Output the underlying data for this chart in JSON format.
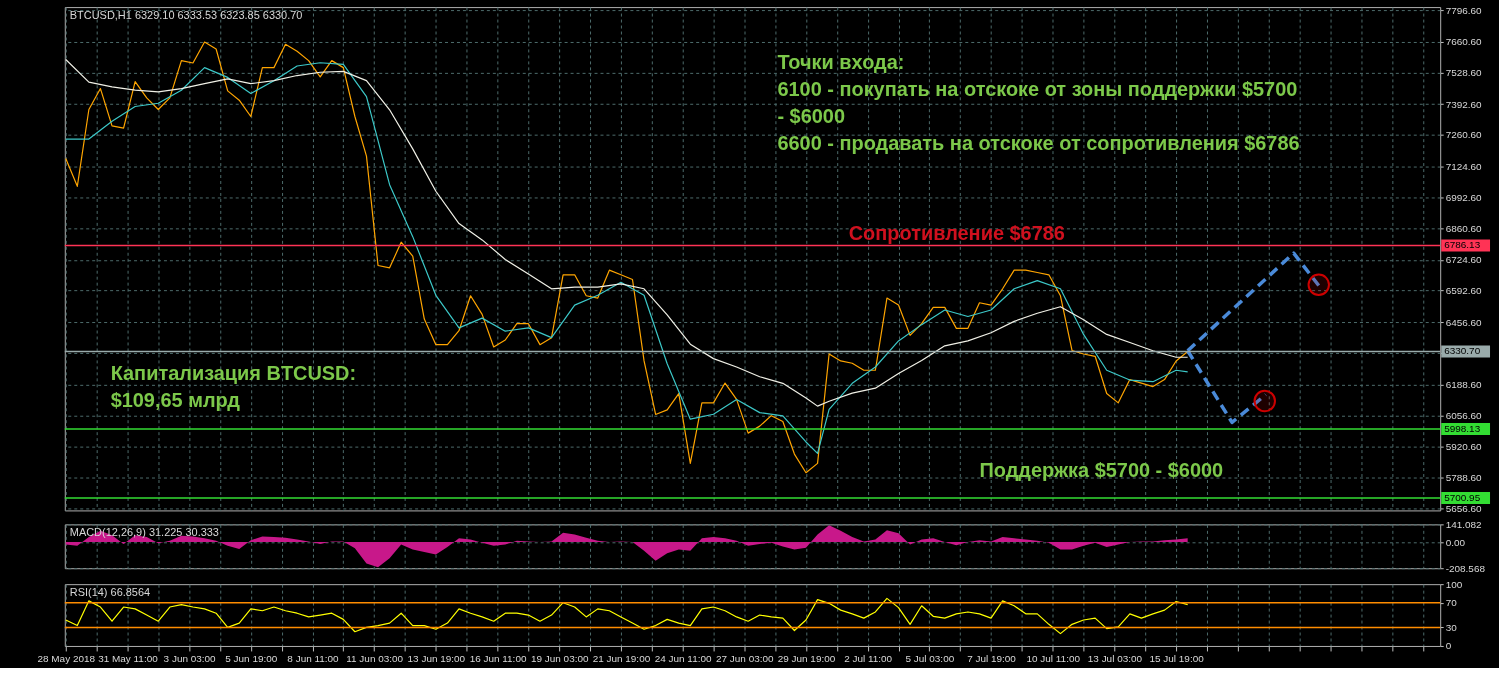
{
  "chart_data": [
    {
      "type": "line",
      "title": "BTCUSD,H1  6329.10 6333.53 6323.85 6330.70",
      "x": [
        "2018-05-28T19:00",
        "2018-05-29T07:00",
        "2018-05-29T19:00",
        "2018-05-30T07:00",
        "2018-05-30T19:00",
        "2018-05-31T07:00",
        "2018-05-31T19:00",
        "2018-06-01T07:00",
        "2018-06-01T19:00",
        "2018-06-02T07:00",
        "2018-06-02T19:00",
        "2018-06-03T07:00",
        "2018-06-03T19:00",
        "2018-06-04T07:00",
        "2018-06-04T19:00",
        "2018-06-05T07:00",
        "2018-06-05T19:00",
        "2018-06-06T07:00",
        "2018-06-06T19:00",
        "2018-06-07T07:00",
        "2018-06-07T19:00",
        "2018-06-08T07:00",
        "2018-06-08T19:00",
        "2018-06-09T07:00",
        "2018-06-09T19:00",
        "2018-06-10T07:00",
        "2018-06-10T19:00",
        "2018-06-11T07:00",
        "2018-06-11T19:00",
        "2018-06-12T07:00",
        "2018-06-12T19:00",
        "2018-06-13T07:00",
        "2018-06-13T19:00",
        "2018-06-14T07:00",
        "2018-06-14T19:00",
        "2018-06-15T07:00",
        "2018-06-15T19:00",
        "2018-06-16T07:00",
        "2018-06-16T19:00",
        "2018-06-17T07:00",
        "2018-06-17T19:00",
        "2018-06-18T07:00",
        "2018-06-18T19:00",
        "2018-06-19T07:00",
        "2018-06-19T19:00",
        "2018-06-20T07:00",
        "2018-06-20T19:00",
        "2018-06-21T07:00",
        "2018-06-21T19:00",
        "2018-06-22T07:00",
        "2018-06-22T19:00",
        "2018-06-23T07:00",
        "2018-06-23T19:00",
        "2018-06-24T07:00",
        "2018-06-24T19:00",
        "2018-06-25T07:00",
        "2018-06-25T19:00",
        "2018-06-26T07:00",
        "2018-06-26T19:00",
        "2018-06-27T07:00",
        "2018-06-27T19:00",
        "2018-06-28T07:00",
        "2018-06-28T19:00",
        "2018-06-29T07:00",
        "2018-06-29T19:00",
        "2018-06-30T07:00",
        "2018-06-30T19:00",
        "2018-07-01T07:00",
        "2018-07-01T19:00",
        "2018-07-02T07:00",
        "2018-07-02T19:00",
        "2018-07-03T07:00",
        "2018-07-03T19:00",
        "2018-07-04T07:00",
        "2018-07-04T19:00",
        "2018-07-05T07:00",
        "2018-07-05T19:00",
        "2018-07-06T07:00",
        "2018-07-06T19:00",
        "2018-07-07T07:00",
        "2018-07-07T19:00",
        "2018-07-08T07:00",
        "2018-07-08T19:00",
        "2018-07-09T07:00",
        "2018-07-09T19:00",
        "2018-07-10T07:00",
        "2018-07-10T19:00",
        "2018-07-11T07:00",
        "2018-07-11T19:00",
        "2018-07-12T07:00",
        "2018-07-12T19:00",
        "2018-07-13T07:00",
        "2018-07-13T19:00",
        "2018-07-14T07:00",
        "2018-07-14T19:00",
        "2018-07-15T07:00",
        "2018-07-15T19:00",
        "2018-07-16T07:00"
      ],
      "series": [
        {
          "color": "#ffa500",
          "values": [
            7160,
            7040,
            7370,
            7460,
            7300,
            7290,
            7490,
            7420,
            7370,
            7420,
            7580,
            7570,
            7660,
            7630,
            7450,
            7410,
            7340,
            7550,
            7550,
            7650,
            7620,
            7580,
            7510,
            7580,
            7550,
            7340,
            7170,
            6700,
            6690,
            6800,
            6740,
            6470,
            6360,
            6360,
            6420,
            6570,
            6490,
            6350,
            6380,
            6450,
            6450,
            6360,
            6390,
            6660,
            6660,
            6570,
            6560,
            6680,
            6660,
            6640,
            6290,
            6060,
            6080,
            6150,
            5850,
            6110,
            6110,
            6195,
            6125,
            5980,
            6010,
            6055,
            6030,
            5890,
            5810,
            5850,
            6320,
            6290,
            6280,
            6250,
            6250,
            6560,
            6530,
            6400,
            6450,
            6520,
            6520,
            6430,
            6430,
            6540,
            6530,
            6600,
            6680,
            6680,
            6670,
            6660,
            6570,
            6335,
            6320,
            6310,
            6150,
            6110,
            6210,
            6195,
            6180,
            6210,
            6290,
            6330.7
          ]
        },
        {
          "color": "#3cc8c8",
          "x": [
            "2018-05-28T19:00",
            "2018-05-29T19:00",
            "2018-05-30T19:00",
            "2018-05-31T19:00",
            "2018-06-01T19:00",
            "2018-06-02T19:00",
            "2018-06-03T19:00",
            "2018-06-04T19:00",
            "2018-06-05T19:00",
            "2018-06-06T19:00",
            "2018-06-07T19:00",
            "2018-06-08T19:00",
            "2018-06-09T19:00",
            "2018-06-10T19:00",
            "2018-06-11T19:00",
            "2018-06-12T19:00",
            "2018-06-13T19:00",
            "2018-06-14T19:00",
            "2018-06-15T19:00",
            "2018-06-16T19:00",
            "2018-06-17T19:00",
            "2018-06-18T19:00",
            "2018-06-19T19:00",
            "2018-06-20T19:00",
            "2018-06-21T19:00",
            "2018-06-22T19:00",
            "2018-06-23T19:00",
            "2018-06-24T19:00",
            "2018-06-25T19:00",
            "2018-06-26T19:00",
            "2018-06-27T19:00",
            "2018-06-28T19:00",
            "2018-06-29T19:00",
            "2018-06-30T07:00",
            "2018-06-30T19:00",
            "2018-07-01T19:00",
            "2018-07-02T19:00",
            "2018-07-03T19:00",
            "2018-07-04T19:00",
            "2018-07-05T19:00",
            "2018-07-06T19:00",
            "2018-07-07T19:00",
            "2018-07-08T19:00",
            "2018-07-09T19:00",
            "2018-07-10T19:00",
            "2018-07-11T19:00",
            "2018-07-12T19:00",
            "2018-07-13T19:00",
            "2018-07-14T19:00",
            "2018-07-15T19:00",
            "2018-07-16T07:00"
          ],
          "values": [
            7243,
            7243,
            7320,
            7383,
            7397,
            7453,
            7550,
            7508,
            7439,
            7494,
            7557,
            7571,
            7564,
            7425,
            7047,
            6824,
            6572,
            6432,
            6474,
            6418,
            6432,
            6390,
            6530,
            6572,
            6628,
            6572,
            6278,
            6040,
            6061,
            6124,
            6068,
            6054,
            5942,
            5893,
            6082,
            6194,
            6264,
            6376,
            6446,
            6509,
            6481,
            6509,
            6600,
            6635,
            6600,
            6404,
            6250,
            6208,
            6201,
            6250,
            6243
          ]
        },
        {
          "color": "#f0f0e6",
          "x": [
            "2018-05-28T19:00",
            "2018-05-29T19:00",
            "2018-05-30T19:00",
            "2018-05-31T19:00",
            "2018-06-01T19:00",
            "2018-06-02T19:00",
            "2018-06-03T19:00",
            "2018-06-04T19:00",
            "2018-06-05T19:00",
            "2018-06-06T19:00",
            "2018-06-07T19:00",
            "2018-06-08T19:00",
            "2018-06-09T19:00",
            "2018-06-10T19:00",
            "2018-06-11T19:00",
            "2018-06-12T19:00",
            "2018-06-13T19:00",
            "2018-06-14T19:00",
            "2018-06-15T19:00",
            "2018-06-16T19:00",
            "2018-06-17T19:00",
            "2018-06-18T19:00",
            "2018-06-19T19:00",
            "2018-06-20T19:00",
            "2018-06-21T19:00",
            "2018-06-22T19:00",
            "2018-06-23T19:00",
            "2018-06-24T19:00",
            "2018-06-25T19:00",
            "2018-06-26T19:00",
            "2018-06-27T19:00",
            "2018-06-28T19:00",
            "2018-06-29T19:00",
            "2018-06-30T07:00",
            "2018-06-30T19:00",
            "2018-07-01T19:00",
            "2018-07-02T19:00",
            "2018-07-03T19:00",
            "2018-07-04T19:00",
            "2018-07-05T19:00",
            "2018-07-06T19:00",
            "2018-07-07T19:00",
            "2018-07-08T19:00",
            "2018-07-09T19:00",
            "2018-07-10T19:00",
            "2018-07-11T19:00",
            "2018-07-12T19:00",
            "2018-07-13T19:00",
            "2018-07-14T19:00",
            "2018-07-15T19:00",
            "2018-07-16T07:00"
          ],
          "values": [
            7585,
            7488,
            7467,
            7453,
            7446,
            7460,
            7481,
            7502,
            7481,
            7494,
            7516,
            7530,
            7534,
            7494,
            7369,
            7201,
            7019,
            6880,
            6810,
            6726,
            6663,
            6600,
            6607,
            6607,
            6621,
            6600,
            6488,
            6362,
            6300,
            6264,
            6222,
            6194,
            6131,
            6096,
            6117,
            6152,
            6173,
            6236,
            6292,
            6355,
            6376,
            6411,
            6460,
            6495,
            6523,
            6467,
            6404,
            6369,
            6334,
            6306,
            6306
          ]
        },
        {
          "type": "line",
          "line_style": "dashed",
          "color": "#4a8ad8",
          "x": [
            "2018-07-16T07:00",
            "2018-07-20T21:00",
            "2018-07-21T23:00"
          ],
          "values": [
            6334,
            6753,
            6614
          ]
        },
        {
          "type": "line",
          "line_style": "dashed",
          "color": "#4a8ad8",
          "x": [
            "2018-07-16T07:00",
            "2018-07-18T05:00",
            "2018-07-19T16:00"
          ],
          "values": [
            6334,
            6026,
            6145
          ]
        },
        {
          "type": "scatter",
          "marker": "circle",
          "color": "#cc0000",
          "x": [
            "2018-07-21T23:00",
            "2018-07-19T15:00"
          ],
          "values": [
            6617,
            6118
          ]
        }
      ],
      "xlim": [
        "2018-05-28T18:00",
        "2018-07-27T05:00"
      ],
      "ylim": [
        5648,
        7810
      ],
      "yticks": [
        {
          "value": 7796.6,
          "label": "7796.60"
        },
        {
          "value": 7660.6,
          "label": "7660.60"
        },
        {
          "value": 7528.6,
          "label": "7528.60"
        },
        {
          "value": 7392.6,
          "label": "7392.60"
        },
        {
          "value": 7260.6,
          "label": "7260.60"
        },
        {
          "value": 7124.6,
          "label": "7124.60"
        },
        {
          "value": 6992.6,
          "label": "6992.60"
        },
        {
          "value": 6860.6,
          "label": "6860.60"
        },
        {
          "value": 6724.6,
          "label": "6724.60"
        },
        {
          "value": 6592.6,
          "label": "6592.60"
        },
        {
          "value": 6456.6,
          "label": "6456.60"
        },
        {
          "value": 6324.6,
          "label": null
        },
        {
          "value": 6188.6,
          "label": "6188.60"
        },
        {
          "value": 6056.6,
          "label": "6056.60"
        },
        {
          "value": 5920.6,
          "label": "5920.60"
        },
        {
          "value": 5788.6,
          "label": "5788.60"
        },
        {
          "value": 5656.6,
          "label": "5656.60"
        }
      ],
      "grid": true,
      "tick_labels": "y",
      "ref_lines": [
        {
          "axis": "y",
          "value": 6786.13,
          "label": "6786.13",
          "color": "#ff3355"
        },
        {
          "axis": "y",
          "value": 6330.7,
          "label": "6330.70",
          "color": "#9aabab"
        },
        {
          "axis": "y",
          "value": 5998.13,
          "label": "5998.13",
          "color": "#33dd33"
        },
        {
          "axis": "y",
          "value": 5700.95,
          "label": "5700.95",
          "color": "#33dd33"
        }
      ],
      "xticks": [
        {
          "value": "2018-05-28T19:00",
          "label": null
        },
        {
          "value": "2018-05-30T03:00",
          "label": null
        },
        {
          "value": "2018-05-31T11:00",
          "label": null
        },
        {
          "value": "2018-06-01T19:00",
          "label": null
        },
        {
          "value": "2018-06-03T03:00",
          "label": null
        },
        {
          "value": "2018-06-04T11:00",
          "label": null
        },
        {
          "value": "2018-06-05T19:00",
          "label": null
        },
        {
          "value": "2018-06-07T03:00",
          "label": null
        },
        {
          "value": "2018-06-08T11:00",
          "label": null
        },
        {
          "value": "2018-06-09T19:00",
          "label": null
        },
        {
          "value": "2018-06-11T03:00",
          "label": null
        },
        {
          "value": "2018-06-12T11:00",
          "label": null
        },
        {
          "value": "2018-06-13T19:00",
          "label": null
        },
        {
          "value": "2018-06-15T03:00",
          "label": null
        },
        {
          "value": "2018-06-16T11:00",
          "label": null
        },
        {
          "value": "2018-06-17T19:00",
          "label": null
        },
        {
          "value": "2018-06-19T03:00",
          "label": null
        },
        {
          "value": "2018-06-20T11:00",
          "label": null
        },
        {
          "value": "2018-06-21T19:00",
          "label": null
        },
        {
          "value": "2018-06-23T03:00",
          "label": null
        },
        {
          "value": "2018-06-24T11:00",
          "label": null
        },
        {
          "value": "2018-06-25T19:00",
          "label": null
        },
        {
          "value": "2018-06-27T03:00",
          "label": null
        },
        {
          "value": "2018-06-28T11:00",
          "label": null
        },
        {
          "value": "2018-06-29T19:00",
          "label": null
        },
        {
          "value": "2018-07-01T03:00",
          "label": null
        },
        {
          "value": "2018-07-02T11:00",
          "label": null
        },
        {
          "value": "2018-07-03T19:00",
          "label": null
        },
        {
          "value": "2018-07-05T03:00",
          "label": null
        },
        {
          "value": "2018-07-06T11:00",
          "label": null
        },
        {
          "value": "2018-07-07T19:00",
          "label": null
        },
        {
          "value": "2018-07-09T03:00",
          "label": null
        },
        {
          "value": "2018-07-10T11:00",
          "label": null
        },
        {
          "value": "2018-07-11T19:00",
          "label": null
        },
        {
          "value": "2018-07-13T03:00",
          "label": null
        },
        {
          "value": "2018-07-14T11:00",
          "label": null
        },
        {
          "value": "2018-07-15T19:00",
          "label": null
        },
        {
          "value": "2018-07-17T03:00",
          "label": null
        },
        {
          "value": "2018-07-18T11:00",
          "label": null
        },
        {
          "value": "2018-07-19T19:00",
          "label": null
        },
        {
          "value": "2018-07-21T03:00",
          "label": null
        },
        {
          "value": "2018-07-22T11:00",
          "label": null
        },
        {
          "value": "2018-07-23T19:00",
          "label": null
        },
        {
          "value": "2018-07-25T03:00",
          "label": null
        },
        {
          "value": "2018-07-26T11:00",
          "label": null
        }
      ],
      "annotations": [
        "Точки входа:\n6100 - покупать на отскоке от зоны поддержки $5700\n- $6000\n6600 - продавать на отскоке от сопротивления $6786",
        "Капитализация BTCUSD:\n$109,65 млрд",
        "Сопротивление $6786",
        "Поддержка $5700 - $6000"
      ]
    },
    {
      "type": "area",
      "title": "MACD(12,26,9) 31.225 30.333",
      "x": [
        "2018-05-28T19:00",
        "2018-05-29T07:00",
        "2018-05-29T19:00",
        "2018-05-30T07:00",
        "2018-05-30T19:00",
        "2018-05-31T07:00",
        "2018-05-31T19:00",
        "2018-06-01T07:00",
        "2018-06-01T19:00",
        "2018-06-02T07:00",
        "2018-06-02T19:00",
        "2018-06-03T07:00",
        "2018-06-03T19:00",
        "2018-06-04T07:00",
        "2018-06-04T19:00",
        "2018-06-05T07:00",
        "2018-06-05T19:00",
        "2018-06-06T07:00",
        "2018-06-06T19:00",
        "2018-06-07T07:00",
        "2018-06-07T19:00",
        "2018-06-08T07:00",
        "2018-06-08T19:00",
        "2018-06-09T07:00",
        "2018-06-09T19:00",
        "2018-06-10T07:00",
        "2018-06-10T19:00",
        "2018-06-11T07:00",
        "2018-06-11T19:00",
        "2018-06-12T07:00",
        "2018-06-12T19:00",
        "2018-06-13T07:00",
        "2018-06-13T19:00",
        "2018-06-14T07:00",
        "2018-06-14T19:00",
        "2018-06-15T07:00",
        "2018-06-15T19:00",
        "2018-06-16T07:00",
        "2018-06-16T19:00",
        "2018-06-17T07:00",
        "2018-06-17T19:00",
        "2018-06-18T07:00",
        "2018-06-18T19:00",
        "2018-06-19T07:00",
        "2018-06-19T19:00",
        "2018-06-20T07:00",
        "2018-06-20T19:00",
        "2018-06-21T07:00",
        "2018-06-21T19:00",
        "2018-06-22T07:00",
        "2018-06-22T19:00",
        "2018-06-23T07:00",
        "2018-06-23T19:00",
        "2018-06-24T07:00",
        "2018-06-24T19:00",
        "2018-06-25T07:00",
        "2018-06-25T19:00",
        "2018-06-26T07:00",
        "2018-06-26T19:00",
        "2018-06-27T07:00",
        "2018-06-27T19:00",
        "2018-06-28T07:00",
        "2018-06-28T19:00",
        "2018-06-29T07:00",
        "2018-06-29T19:00",
        "2018-06-30T07:00",
        "2018-06-30T19:00",
        "2018-07-01T07:00",
        "2018-07-01T19:00",
        "2018-07-02T07:00",
        "2018-07-02T19:00",
        "2018-07-03T07:00",
        "2018-07-03T19:00",
        "2018-07-04T07:00",
        "2018-07-04T19:00",
        "2018-07-05T07:00",
        "2018-07-05T19:00",
        "2018-07-06T07:00",
        "2018-07-06T19:00",
        "2018-07-07T07:00",
        "2018-07-07T19:00",
        "2018-07-08T07:00",
        "2018-07-08T19:00",
        "2018-07-09T07:00",
        "2018-07-09T19:00",
        "2018-07-10T07:00",
        "2018-07-10T19:00",
        "2018-07-11T07:00",
        "2018-07-11T19:00",
        "2018-07-12T07:00",
        "2018-07-12T19:00",
        "2018-07-13T07:00",
        "2018-07-13T19:00",
        "2018-07-14T07:00",
        "2018-07-14T19:00",
        "2018-07-15T07:00",
        "2018-07-15T19:00",
        "2018-07-16T07:00"
      ],
      "series": [
        {
          "color": "#c8188a",
          "values": [
            -20,
            -30,
            40,
            90,
            55,
            -15,
            55,
            40,
            -10,
            10,
            50,
            45,
            30,
            10,
            -30,
            -55,
            15,
            45,
            40,
            35,
            20,
            5,
            -15,
            5,
            5,
            -50,
            -170,
            -200,
            -130,
            -20,
            -60,
            -80,
            -100,
            -40,
            30,
            20,
            -5,
            -30,
            -20,
            10,
            5,
            0,
            5,
            75,
            60,
            35,
            10,
            0,
            5,
            0,
            -70,
            -150,
            -90,
            -60,
            -70,
            30,
            40,
            30,
            10,
            -30,
            -15,
            -5,
            -35,
            -60,
            -45,
            60,
            135,
            90,
            40,
            5,
            20,
            95,
            70,
            -20,
            20,
            30,
            0,
            -25,
            0,
            15,
            5,
            40,
            30,
            20,
            10,
            -5,
            -60,
            -60,
            -30,
            -5,
            -40,
            -20,
            0,
            5,
            5,
            15,
            20,
            31.225
          ]
        }
      ],
      "xlim": [
        "2018-05-28T18:00",
        "2018-07-27T05:00"
      ],
      "xticks": [
        {
          "value": "2018-05-28T19:00",
          "label": null
        },
        {
          "value": "2018-05-30T03:00",
          "label": null
        },
        {
          "value": "2018-05-31T11:00",
          "label": null
        },
        {
          "value": "2018-06-01T19:00",
          "label": null
        },
        {
          "value": "2018-06-03T03:00",
          "label": null
        },
        {
          "value": "2018-06-04T11:00",
          "label": null
        },
        {
          "value": "2018-06-05T19:00",
          "label": null
        },
        {
          "value": "2018-06-07T03:00",
          "label": null
        },
        {
          "value": "2018-06-08T11:00",
          "label": null
        },
        {
          "value": "2018-06-09T19:00",
          "label": null
        },
        {
          "value": "2018-06-11T03:00",
          "label": null
        },
        {
          "value": "2018-06-12T11:00",
          "label": null
        },
        {
          "value": "2018-06-13T19:00",
          "label": null
        },
        {
          "value": "2018-06-15T03:00",
          "label": null
        },
        {
          "value": "2018-06-16T11:00",
          "label": null
        },
        {
          "value": "2018-06-17T19:00",
          "label": null
        },
        {
          "value": "2018-06-19T03:00",
          "label": null
        },
        {
          "value": "2018-06-20T11:00",
          "label": null
        },
        {
          "value": "2018-06-21T19:00",
          "label": null
        },
        {
          "value": "2018-06-23T03:00",
          "label": null
        },
        {
          "value": "2018-06-24T11:00",
          "label": null
        },
        {
          "value": "2018-06-25T19:00",
          "label": null
        },
        {
          "value": "2018-06-27T03:00",
          "label": null
        },
        {
          "value": "2018-06-28T11:00",
          "label": null
        },
        {
          "value": "2018-06-29T19:00",
          "label": null
        },
        {
          "value": "2018-07-01T03:00",
          "label": null
        },
        {
          "value": "2018-07-02T11:00",
          "label": null
        },
        {
          "value": "2018-07-03T19:00",
          "label": null
        },
        {
          "value": "2018-07-05T03:00",
          "label": null
        },
        {
          "value": "2018-07-06T11:00",
          "label": null
        },
        {
          "value": "2018-07-07T19:00",
          "label": null
        },
        {
          "value": "2018-07-09T03:00",
          "label": null
        },
        {
          "value": "2018-07-10T11:00",
          "label": null
        },
        {
          "value": "2018-07-11T19:00",
          "label": null
        },
        {
          "value": "2018-07-13T03:00",
          "label": null
        },
        {
          "value": "2018-07-14T11:00",
          "label": null
        },
        {
          "value": "2018-07-15T19:00",
          "label": null
        },
        {
          "value": "2018-07-17T03:00",
          "label": null
        },
        {
          "value": "2018-07-18T11:00",
          "label": null
        },
        {
          "value": "2018-07-19T19:00",
          "label": null
        },
        {
          "value": "2018-07-21T03:00",
          "label": null
        },
        {
          "value": "2018-07-22T11:00",
          "label": null
        },
        {
          "value": "2018-07-23T19:00",
          "label": null
        },
        {
          "value": "2018-07-25T03:00",
          "label": null
        },
        {
          "value": "2018-07-26T11:00",
          "label": null
        }
      ],
      "ylim": [
        -208.568,
        141.082
      ],
      "yticks": [
        {
          "value": 141.082,
          "label": "141.082"
        },
        {
          "value": 0,
          "label": "0.00"
        },
        {
          "value": -208.568,
          "label": "-208.568"
        }
      ],
      "grid": true,
      "tick_labels": "y"
    },
    {
      "type": "line",
      "title": "RSI(14) 66.8564",
      "x": [
        "2018-05-28T19:00",
        "2018-05-29T07:00",
        "2018-05-29T19:00",
        "2018-05-30T07:00",
        "2018-05-30T19:00",
        "2018-05-31T07:00",
        "2018-05-31T19:00",
        "2018-06-01T07:00",
        "2018-06-01T19:00",
        "2018-06-02T07:00",
        "2018-06-02T19:00",
        "2018-06-03T07:00",
        "2018-06-03T19:00",
        "2018-06-04T07:00",
        "2018-06-04T19:00",
        "2018-06-05T07:00",
        "2018-06-05T19:00",
        "2018-06-06T07:00",
        "2018-06-06T19:00",
        "2018-06-07T07:00",
        "2018-06-07T19:00",
        "2018-06-08T07:00",
        "2018-06-08T19:00",
        "2018-06-09T07:00",
        "2018-06-09T19:00",
        "2018-06-10T07:00",
        "2018-06-10T19:00",
        "2018-06-11T07:00",
        "2018-06-11T19:00",
        "2018-06-12T07:00",
        "2018-06-12T19:00",
        "2018-06-13T07:00",
        "2018-06-13T19:00",
        "2018-06-14T07:00",
        "2018-06-14T19:00",
        "2018-06-15T07:00",
        "2018-06-15T19:00",
        "2018-06-16T07:00",
        "2018-06-16T19:00",
        "2018-06-17T07:00",
        "2018-06-17T19:00",
        "2018-06-18T07:00",
        "2018-06-18T19:00",
        "2018-06-19T07:00",
        "2018-06-19T19:00",
        "2018-06-20T07:00",
        "2018-06-20T19:00",
        "2018-06-21T07:00",
        "2018-06-21T19:00",
        "2018-06-22T07:00",
        "2018-06-22T19:00",
        "2018-06-23T07:00",
        "2018-06-23T19:00",
        "2018-06-24T07:00",
        "2018-06-24T19:00",
        "2018-06-25T07:00",
        "2018-06-25T19:00",
        "2018-06-26T07:00",
        "2018-06-26T19:00",
        "2018-06-27T07:00",
        "2018-06-27T19:00",
        "2018-06-28T07:00",
        "2018-06-28T19:00",
        "2018-06-29T07:00",
        "2018-06-29T19:00",
        "2018-06-30T07:00",
        "2018-06-30T19:00",
        "2018-07-01T07:00",
        "2018-07-01T19:00",
        "2018-07-02T07:00",
        "2018-07-02T19:00",
        "2018-07-03T07:00",
        "2018-07-03T19:00",
        "2018-07-04T07:00",
        "2018-07-04T19:00",
        "2018-07-05T07:00",
        "2018-07-05T19:00",
        "2018-07-06T07:00",
        "2018-07-06T19:00",
        "2018-07-07T07:00",
        "2018-07-07T19:00",
        "2018-07-08T07:00",
        "2018-07-08T19:00",
        "2018-07-09T07:00",
        "2018-07-09T19:00",
        "2018-07-10T07:00",
        "2018-07-10T19:00",
        "2018-07-11T07:00",
        "2018-07-11T19:00",
        "2018-07-12T07:00",
        "2018-07-12T19:00",
        "2018-07-13T07:00",
        "2018-07-13T19:00",
        "2018-07-14T07:00",
        "2018-07-14T19:00",
        "2018-07-15T07:00",
        "2018-07-15T19:00",
        "2018-07-16T07:00"
      ],
      "series": [
        {
          "color": "#ffff00",
          "values": [
            42,
            33,
            73,
            63,
            40,
            63,
            60,
            50,
            40,
            63,
            67,
            63,
            60,
            53,
            30,
            37,
            60,
            57,
            63,
            57,
            53,
            47,
            50,
            53,
            43,
            23,
            30,
            33,
            37,
            53,
            33,
            33,
            27,
            37,
            60,
            53,
            47,
            40,
            53,
            53,
            50,
            40,
            50,
            70,
            63,
            47,
            60,
            57,
            47,
            37,
            27,
            33,
            43,
            37,
            33,
            60,
            63,
            57,
            47,
            40,
            50,
            47,
            45,
            25,
            42,
            75,
            69,
            58,
            52,
            45,
            55,
            77,
            62,
            35,
            65,
            48,
            45,
            52,
            55,
            52,
            45,
            73,
            65,
            52,
            52,
            35,
            20,
            35,
            42,
            45,
            28,
            31,
            52,
            45,
            52,
            58,
            72,
            66.8564
          ]
        }
      ],
      "xlim": [
        "2018-05-28T18:00",
        "2018-07-27T05:00"
      ],
      "xticks": [
        {
          "value": "2018-05-28T19:00",
          "label": "28 May 2018"
        },
        {
          "value": "2018-05-30T03:00",
          "label": null
        },
        {
          "value": "2018-05-31T11:00",
          "label": "31 May 11:00"
        },
        {
          "value": "2018-06-01T19:00",
          "label": null
        },
        {
          "value": "2018-06-03T03:00",
          "label": "3 Jun 03:00"
        },
        {
          "value": "2018-06-04T11:00",
          "label": null
        },
        {
          "value": "2018-06-05T19:00",
          "label": "5 Jun 19:00"
        },
        {
          "value": "2018-06-07T03:00",
          "label": null
        },
        {
          "value": "2018-06-08T11:00",
          "label": "8 Jun 11:00"
        },
        {
          "value": "2018-06-09T19:00",
          "label": null
        },
        {
          "value": "2018-06-11T03:00",
          "label": "11 Jun 03:00"
        },
        {
          "value": "2018-06-12T11:00",
          "label": null
        },
        {
          "value": "2018-06-13T19:00",
          "label": "13 Jun 19:00"
        },
        {
          "value": "2018-06-15T03:00",
          "label": null
        },
        {
          "value": "2018-06-16T11:00",
          "label": "16 Jun 11:00"
        },
        {
          "value": "2018-06-17T19:00",
          "label": null
        },
        {
          "value": "2018-06-19T03:00",
          "label": "19 Jun 03:00"
        },
        {
          "value": "2018-06-20T11:00",
          "label": null
        },
        {
          "value": "2018-06-21T19:00",
          "label": "21 Jun 19:00"
        },
        {
          "value": "2018-06-23T03:00",
          "label": null
        },
        {
          "value": "2018-06-24T11:00",
          "label": "24 Jun 11:00"
        },
        {
          "value": "2018-06-25T19:00",
          "label": null
        },
        {
          "value": "2018-06-27T03:00",
          "label": "27 Jun 03:00"
        },
        {
          "value": "2018-06-28T11:00",
          "label": null
        },
        {
          "value": "2018-06-29T19:00",
          "label": "29 Jun 19:00"
        },
        {
          "value": "2018-07-01T03:00",
          "label": null
        },
        {
          "value": "2018-07-02T11:00",
          "label": "2 Jul 11:00"
        },
        {
          "value": "2018-07-03T19:00",
          "label": null
        },
        {
          "value": "2018-07-05T03:00",
          "label": "5 Jul 03:00"
        },
        {
          "value": "2018-07-06T11:00",
          "label": null
        },
        {
          "value": "2018-07-07T19:00",
          "label": "7 Jul 19:00"
        },
        {
          "value": "2018-07-09T03:00",
          "label": null
        },
        {
          "value": "2018-07-10T11:00",
          "label": "10 Jul 11:00"
        },
        {
          "value": "2018-07-11T19:00",
          "label": null
        },
        {
          "value": "2018-07-13T03:00",
          "label": "13 Jul 03:00"
        },
        {
          "value": "2018-07-14T11:00",
          "label": null
        },
        {
          "value": "2018-07-15T19:00",
          "label": "15 Jul 19:00"
        },
        {
          "value": "2018-07-17T03:00",
          "label": null
        },
        {
          "value": "2018-07-18T11:00",
          "label": null
        },
        {
          "value": "2018-07-19T19:00",
          "label": null
        },
        {
          "value": "2018-07-21T03:00",
          "label": null
        },
        {
          "value": "2018-07-22T11:00",
          "label": null
        },
        {
          "value": "2018-07-23T19:00",
          "label": null
        },
        {
          "value": "2018-07-25T03:00",
          "label": null
        },
        {
          "value": "2018-07-26T11:00",
          "label": null
        }
      ],
      "ylim": [
        0,
        100
      ],
      "yticks": [
        100,
        70,
        30,
        0
      ],
      "grid": "x",
      "ref_lines": [
        {
          "axis": "y",
          "value": 70,
          "color": "#ff8c00"
        },
        {
          "axis": "y",
          "value": 30,
          "color": "#ff8c00"
        }
      ]
    }
  ]
}
